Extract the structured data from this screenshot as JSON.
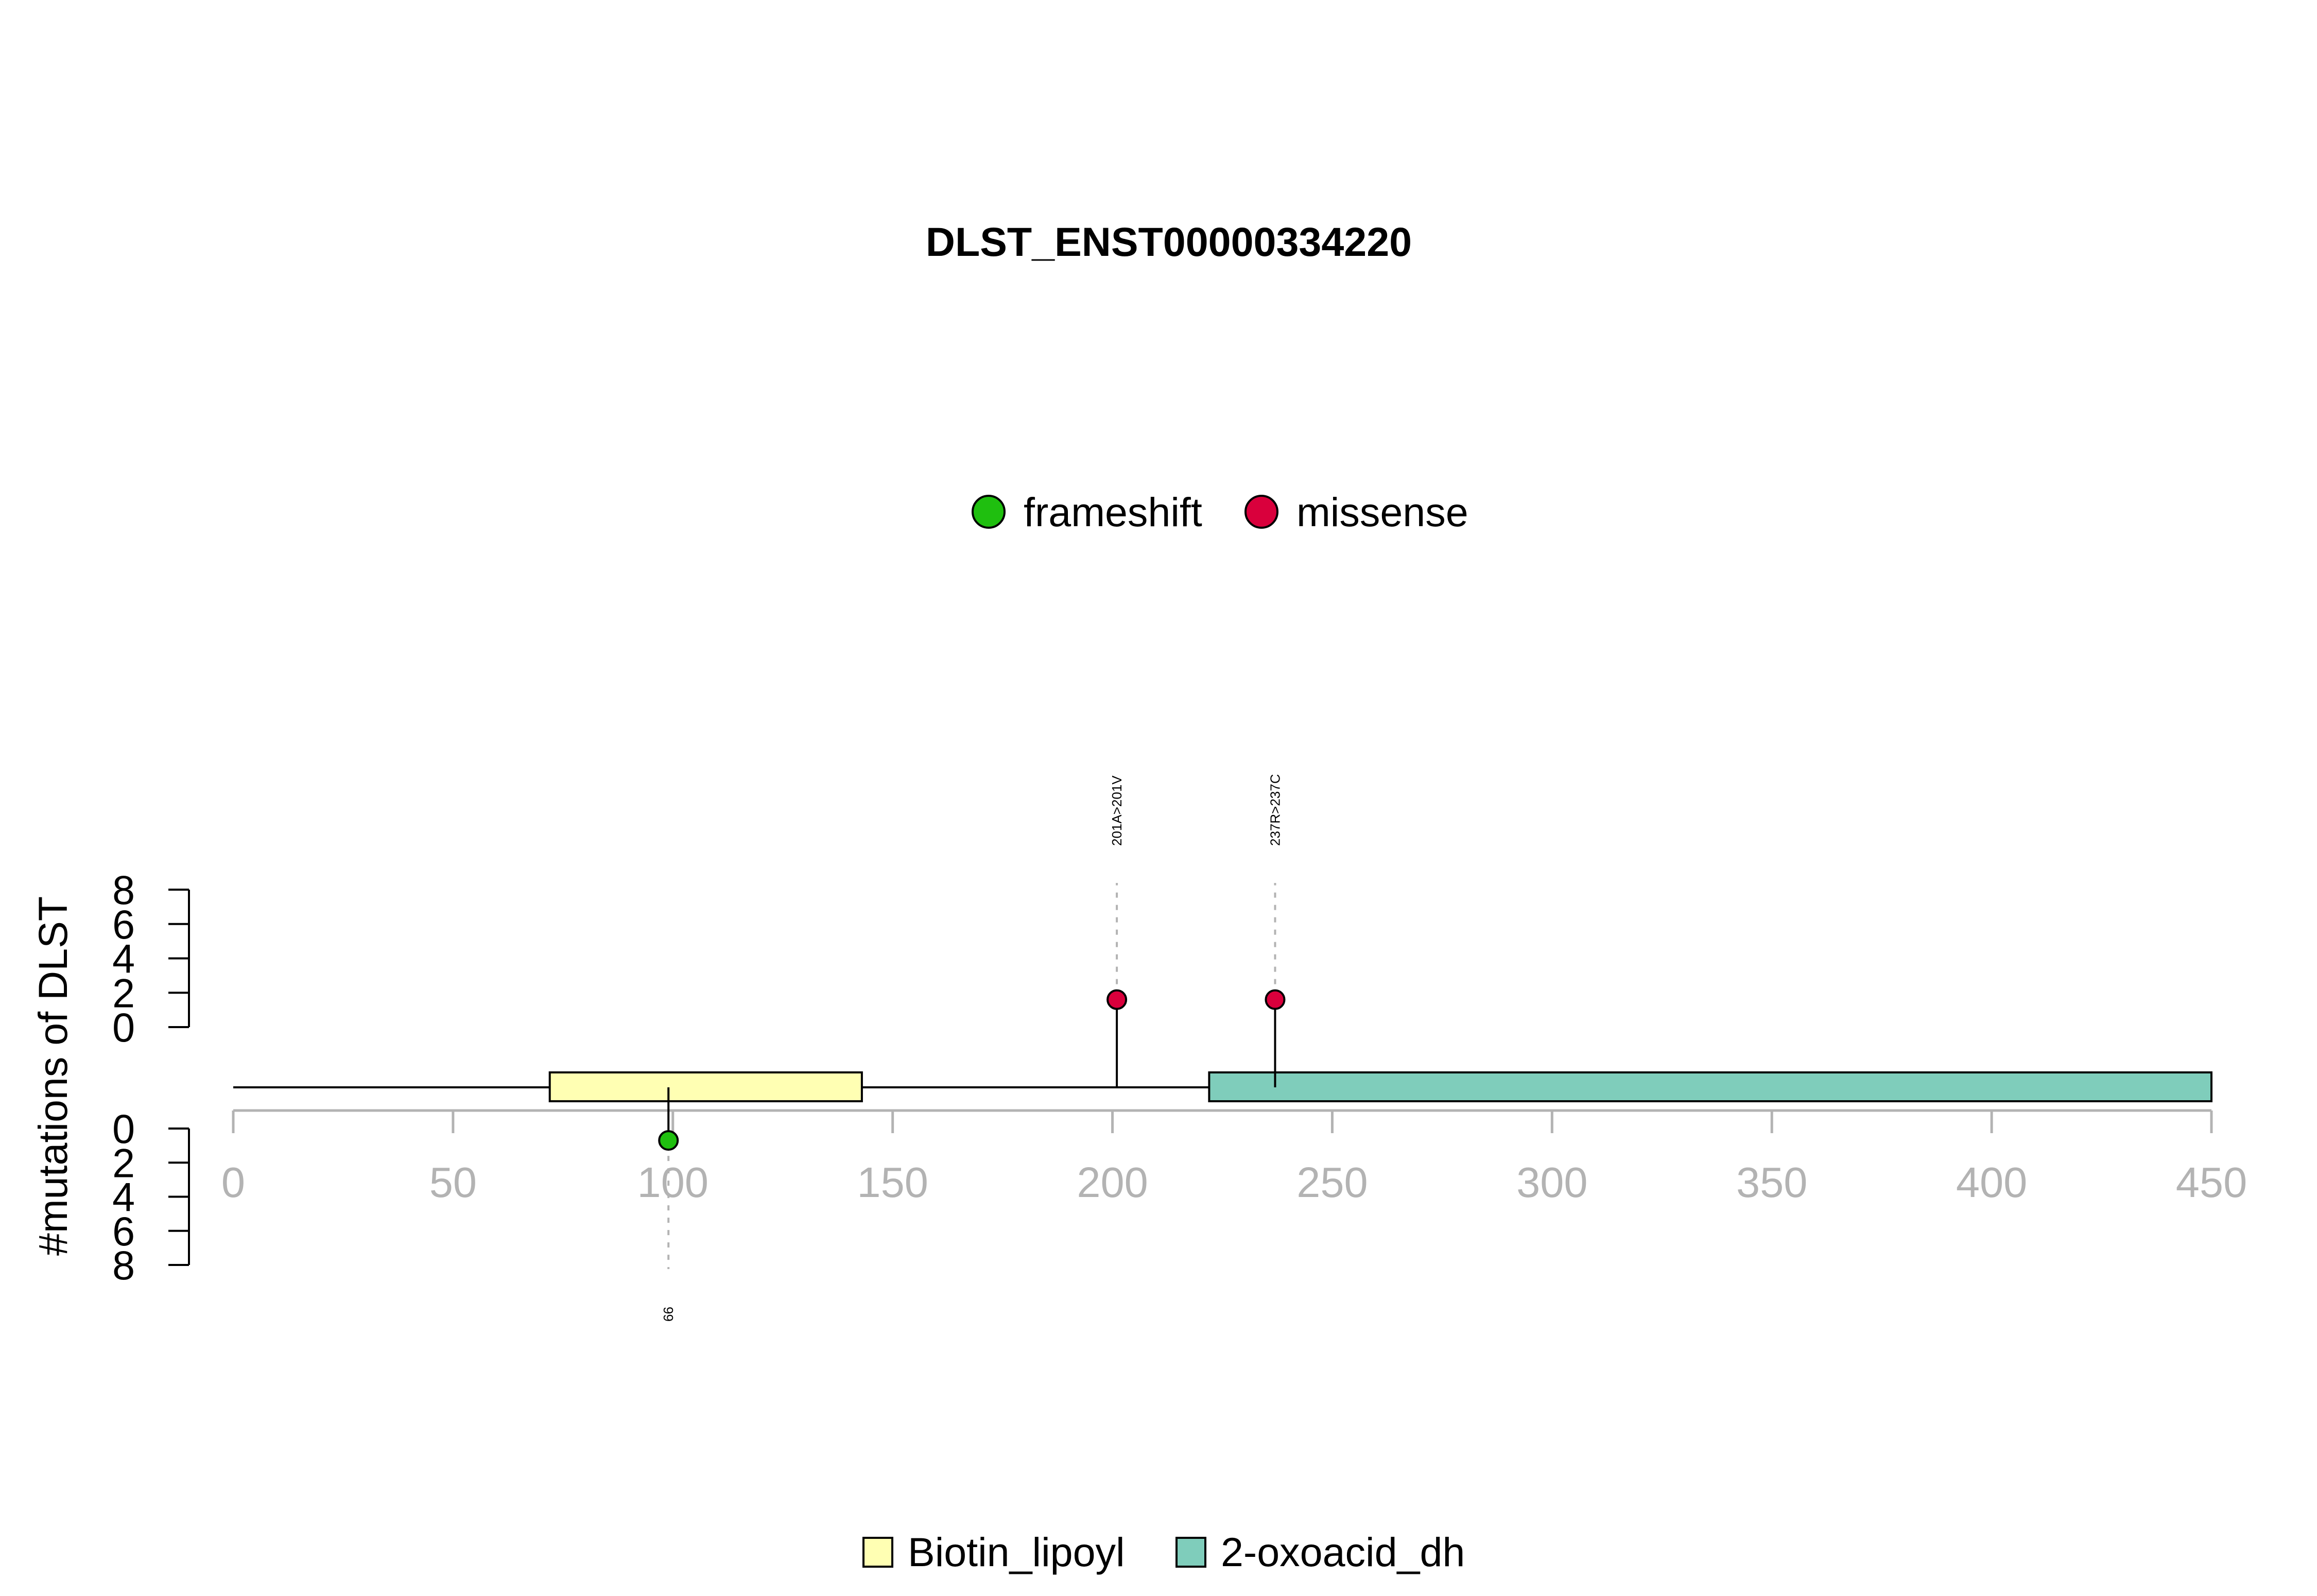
{
  "chart_data": {
    "type": "lollipop",
    "title": "DLST_ENST00000334220",
    "ylabel": "#mutations of DLST",
    "xlim": [
      0,
      450
    ],
    "x_ticks": [
      0,
      50,
      100,
      150,
      200,
      250,
      300,
      350,
      400,
      450
    ],
    "y_ticks_top": [
      0,
      2,
      4,
      6,
      8
    ],
    "y_ticks_bottom": [
      0,
      2,
      4,
      6,
      8
    ],
    "ylim": [
      0,
      8
    ],
    "protein_length": 450,
    "mutation_legend": [
      {
        "label": "frameshift",
        "color": "#1fbf0f"
      },
      {
        "label": "missense",
        "color": "#d9003c"
      }
    ],
    "domain_legend": [
      {
        "label": "Biotin_lipoyl",
        "color": "#ffffb3"
      },
      {
        "label": "2-oxoacid_dh",
        "color": "#7fcdbb"
      }
    ],
    "domains": [
      {
        "name": "Biotin_lipoyl",
        "start": 72,
        "end": 143,
        "color": "#ffffb3"
      },
      {
        "name": "2-oxoacid_dh",
        "start": 222,
        "end": 450,
        "color": "#7fcdbb"
      }
    ],
    "mutations": [
      {
        "position": 99,
        "count": 1,
        "type": "frameshift",
        "side": "bottom",
        "label": "99",
        "color": "#1fbf0f"
      },
      {
        "position": 201,
        "count": 1,
        "type": "missense",
        "side": "top",
        "label": "201A>201V",
        "color": "#d9003c"
      },
      {
        "position": 237,
        "count": 1,
        "type": "missense",
        "side": "top",
        "label": "237R>237C",
        "color": "#d9003c"
      }
    ]
  }
}
